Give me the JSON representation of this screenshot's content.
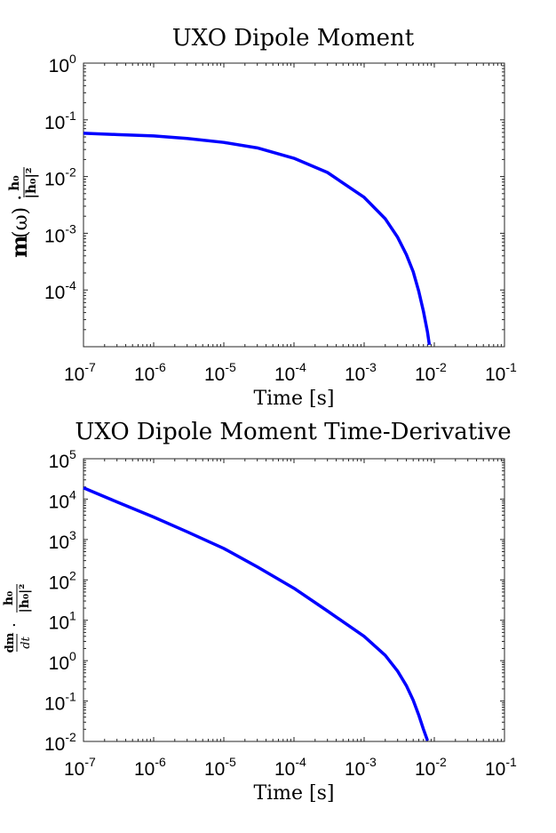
{
  "chart_data": [
    {
      "type": "line",
      "title": "UXO Dipole Moment",
      "xlabel": "Time [s]",
      "ylabel": "m(ω) · h0 / |h0|²",
      "xscale": "log",
      "yscale": "log",
      "xlim": [
        1e-07,
        0.1
      ],
      "ylim": [
        1e-05,
        1
      ],
      "xticks": [
        {
          "base": "10",
          "exp": "-7"
        },
        {
          "base": "10",
          "exp": "-6"
        },
        {
          "base": "10",
          "exp": "-5"
        },
        {
          "base": "10",
          "exp": "-4"
        },
        {
          "base": "10",
          "exp": "-3"
        },
        {
          "base": "10",
          "exp": "-2"
        },
        {
          "base": "10",
          "exp": "-1"
        }
      ],
      "yticks": [
        {
          "value": 0.0001,
          "base": "10",
          "exp": "-4"
        },
        {
          "value": 0.001,
          "base": "10",
          "exp": "-3"
        },
        {
          "value": 0.01,
          "base": "10",
          "exp": "-2"
        },
        {
          "value": 0.1,
          "base": "10",
          "exp": "-1"
        },
        {
          "value": 1,
          "base": "10",
          "exp": "0"
        }
      ],
      "grid": false,
      "series": [
        {
          "color": "#0000ff",
          "x": [
            1e-07,
            3e-07,
            1e-06,
            3e-06,
            1e-05,
            3e-05,
            0.0001,
            0.0003,
            0.001,
            0.002,
            0.003,
            0.004,
            0.005,
            0.006,
            0.007,
            0.008,
            0.0085
          ],
          "y": [
            0.058,
            0.055,
            0.052,
            0.047,
            0.04,
            0.032,
            0.021,
            0.0118,
            0.0043,
            0.0018,
            0.00085,
            0.00042,
            0.00021,
            9.5e-05,
            4.2e-05,
            1.8e-05,
            1.08e-05
          ]
        }
      ]
    },
    {
      "type": "line",
      "title": "UXO Dipole Moment Time-Derivative",
      "xlabel": "Time [s]",
      "ylabel": "dm/dt · h0 / |h0|²",
      "xscale": "log",
      "yscale": "log",
      "xlim": [
        1e-07,
        0.1
      ],
      "ylim": [
        0.01,
        100000.0
      ],
      "xticks": [
        {
          "base": "10",
          "exp": "-7"
        },
        {
          "base": "10",
          "exp": "-6"
        },
        {
          "base": "10",
          "exp": "-5"
        },
        {
          "base": "10",
          "exp": "-4"
        },
        {
          "base": "10",
          "exp": "-3"
        },
        {
          "base": "10",
          "exp": "-2"
        },
        {
          "base": "10",
          "exp": "-1"
        }
      ],
      "yticks": [
        {
          "value": 0.01,
          "base": "10",
          "exp": "-2"
        },
        {
          "value": 0.1,
          "base": "10",
          "exp": "-1"
        },
        {
          "value": 1,
          "base": "10",
          "exp": "0"
        },
        {
          "value": 10.0,
          "base": "10",
          "exp": "1"
        },
        {
          "value": 100.0,
          "base": "10",
          "exp": "2"
        },
        {
          "value": 1000.0,
          "base": "10",
          "exp": "3"
        },
        {
          "value": 10000.0,
          "base": "10",
          "exp": "4"
        },
        {
          "value": 100000.0,
          "base": "10",
          "exp": "5"
        }
      ],
      "grid": false,
      "series": [
        {
          "color": "#0000ff",
          "x": [
            1e-07,
            3e-07,
            1e-06,
            3e-06,
            1e-05,
            3e-05,
            0.0001,
            0.0003,
            0.001,
            0.002,
            0.003,
            0.004,
            0.005,
            0.006,
            0.007,
            0.008
          ],
          "y": [
            19000,
            8500,
            3600,
            1550,
            600,
            210,
            62,
            17,
            4.0,
            1.35,
            0.55,
            0.24,
            0.105,
            0.045,
            0.02,
            0.0105
          ]
        }
      ]
    }
  ]
}
